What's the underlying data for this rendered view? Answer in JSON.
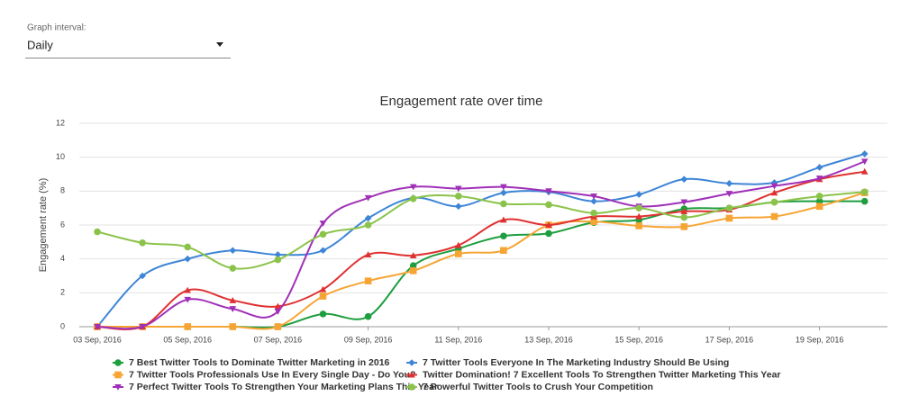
{
  "controls": {
    "label": "Graph interval:",
    "value": "Daily"
  },
  "chart_data": {
    "type": "line",
    "title": "Engagement rate over time",
    "y_label": "Engagement rate (%)",
    "categories": [
      "03 Sep, 2016",
      null,
      "05 Sep, 2016",
      null,
      "07 Sep, 2016",
      null,
      "09 Sep, 2016",
      null,
      "11 Sep, 2016",
      null,
      "13 Sep, 2016",
      null,
      "15 Sep, 2016",
      null,
      "17 Sep, 2016",
      null,
      "19 Sep, 2016",
      null
    ],
    "ylim": [
      0,
      12
    ],
    "yticks": [
      0,
      2,
      4,
      6,
      8,
      10,
      12
    ],
    "grid": true,
    "smooth": true,
    "legend": "bottom",
    "series": [
      {
        "name": "7 Best Twitter Tools to Dominate Twitter Marketing in 2016",
        "color": "#1e9e3e",
        "marker": "circle",
        "values": [
          0,
          0,
          0,
          0,
          0,
          0.75,
          0.6,
          3.6,
          4.6,
          5.35,
          5.5,
          6.15,
          6.3,
          6.95,
          7.0,
          7.35,
          7.4,
          7.4
        ]
      },
      {
        "name": "7 Twitter Tools Everyone In The Marketing Industry Should Be Using",
        "color": "#3d85d6",
        "marker": "diamond",
        "values": [
          0,
          3.0,
          4.0,
          4.5,
          4.25,
          4.5,
          6.4,
          7.6,
          7.1,
          7.9,
          7.95,
          7.4,
          7.8,
          8.7,
          8.45,
          8.5,
          9.4,
          10.2
        ]
      },
      {
        "name": "7 Twitter Tools Professionals Use In Every Single Day - Do You?",
        "color": "#f6a535",
        "marker": "square",
        "values": [
          0,
          0,
          0,
          0,
          0,
          1.8,
          2.7,
          3.3,
          4.3,
          4.5,
          6.0,
          6.2,
          5.95,
          5.9,
          6.4,
          6.5,
          7.1,
          7.9
        ]
      },
      {
        "name": "Twitter Domination! 7 Excellent Tools To Strengthen Twitter Marketing This Year",
        "color": "#e03131",
        "marker": "triangle-up",
        "values": [
          0,
          0,
          2.15,
          1.55,
          1.2,
          2.2,
          4.25,
          4.2,
          4.8,
          6.3,
          6.0,
          6.5,
          6.5,
          6.8,
          6.9,
          7.9,
          8.7,
          9.15
        ]
      },
      {
        "name": "7 Perfect Twitter Tools To Strengthen Your Marketing Plans This Year",
        "color": "#a030b8",
        "marker": "triangle-down",
        "values": [
          0,
          0,
          1.6,
          1.05,
          0.9,
          6.1,
          7.6,
          8.25,
          8.15,
          8.25,
          8.0,
          7.7,
          7.1,
          7.35,
          7.85,
          8.3,
          8.75,
          9.75
        ]
      },
      {
        "name": "7 Powerful Twitter Tools to Crush Your Competition",
        "color": "#8bc34a",
        "marker": "circle",
        "values": [
          5.6,
          4.95,
          4.7,
          3.45,
          3.95,
          5.45,
          6.0,
          7.55,
          7.7,
          7.25,
          7.2,
          6.7,
          7.0,
          6.45,
          7.0,
          7.35,
          7.7,
          7.95
        ]
      }
    ]
  }
}
